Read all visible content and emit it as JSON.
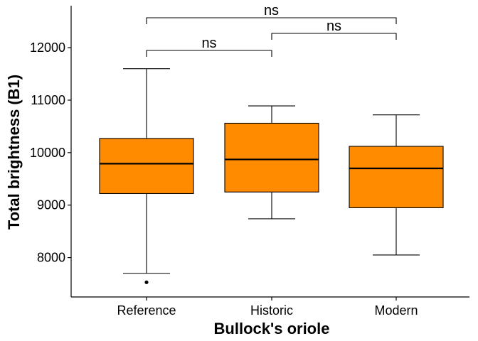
{
  "chart_data": {
    "type": "box",
    "xlabel": "Bullock's oriole",
    "ylabel": "Total brightness (B1)",
    "ylim": [
      7250,
      12800
    ],
    "yticks": [
      8000,
      9000,
      10000,
      11000,
      12000
    ],
    "categories": [
      "Reference",
      "Historic",
      "Modern"
    ],
    "fill_color": "#FF8C00",
    "boxes": [
      {
        "category": "Reference",
        "whisker_low": 7700,
        "q1": 9220,
        "median": 9790,
        "q3": 10270,
        "whisker_high": 11600,
        "outliers": [
          7530
        ]
      },
      {
        "category": "Historic",
        "whisker_low": 8740,
        "q1": 9250,
        "median": 9870,
        "q3": 10560,
        "whisker_high": 10890,
        "outliers": []
      },
      {
        "category": "Modern",
        "whisker_low": 8050,
        "q1": 8950,
        "median": 9700,
        "q3": 10120,
        "whisker_high": 10720,
        "outliers": []
      }
    ],
    "comparisons": [
      {
        "from": "Reference",
        "to": "Historic",
        "label": "ns"
      },
      {
        "from": "Historic",
        "to": "Modern",
        "label": "ns"
      },
      {
        "from": "Reference",
        "to": "Modern",
        "label": "ns"
      }
    ],
    "grid": false
  }
}
